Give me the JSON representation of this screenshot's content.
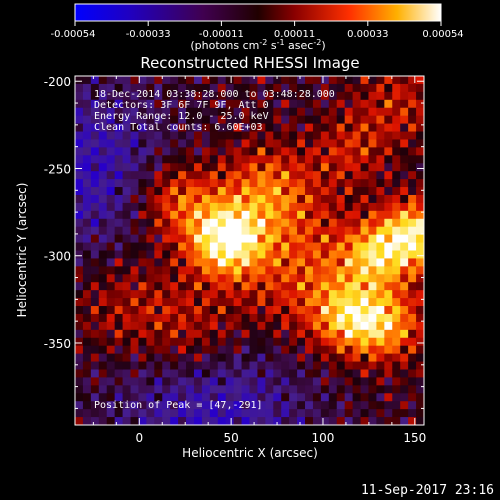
{
  "colorbar": {
    "ticks": [
      "-0.00054",
      "-0.00033",
      "-0.00011",
      "0.00011",
      "0.00033",
      "0.00054"
    ],
    "unit_label": "(photons cm",
    "unit_exp1": "-2",
    "unit_mid": " s",
    "unit_exp2": "-1",
    "unit_mid2": " asec",
    "unit_exp3": "-2",
    "unit_end": ")"
  },
  "chart_data": {
    "type": "heatmap",
    "title": "Reconstructed RHESSI Image",
    "xlabel": "Heliocentric X (arcsec)",
    "ylabel": "Heliocentric Y (arcsec)",
    "xlim": [
      -35,
      155
    ],
    "ylim": [
      -397,
      -197
    ],
    "x_ticks": [
      "0",
      "50",
      "100",
      "150"
    ],
    "y_ticks": [
      "-200",
      "-250",
      "-300",
      "-350"
    ],
    "colorbar_range": [
      -0.00054,
      0.00054
    ],
    "colormap": "rainbow-black-purple-red-yellow-white",
    "peak_position": [
      47,
      -291
    ],
    "annotations": {
      "time": "18-Dec-2014 03:38:28.000 to 03:48:28.000",
      "detectors": "Detectors: 3F 6F 7F 9F, Att 0",
      "energy": "Energy Range: 12.0 - 25.0 keV",
      "clean": "Clean    Total counts: 6.60E+03",
      "peak": "Position of Peak = [47,-291]"
    }
  },
  "footer": {
    "timestamp": "11-Sep-2017 23:16"
  }
}
